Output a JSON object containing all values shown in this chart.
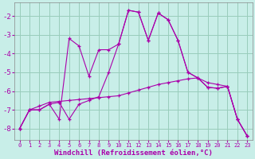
{
  "xlabel": "Windchill (Refroidissement éolien,°C)",
  "background_color": "#c8eee8",
  "grid_color": "#99ccbb",
  "line_color": "#aa00aa",
  "x_values": [
    0,
    1,
    2,
    3,
    4,
    5,
    6,
    7,
    8,
    9,
    10,
    11,
    12,
    13,
    14,
    15,
    16,
    17,
    18,
    19,
    20,
    21,
    22,
    23
  ],
  "line1": [
    -8.0,
    -7.0,
    -7.0,
    -6.7,
    -6.6,
    -7.5,
    -6.7,
    -6.5,
    -6.3,
    -5.0,
    -3.5,
    -1.7,
    -1.8,
    -3.3,
    -1.85,
    -2.2,
    -3.3,
    -5.0,
    -5.3,
    -5.8,
    -5.85,
    -5.75,
    -7.5,
    -8.4
  ],
  "line2": [
    -8.0,
    -7.0,
    -7.0,
    -6.7,
    -7.5,
    -3.2,
    -3.6,
    -5.2,
    -3.8,
    -3.8,
    -3.5,
    -1.7,
    -1.8,
    -3.3,
    -1.85,
    -2.2,
    -3.3,
    -5.0,
    -5.3,
    -5.8,
    -5.85,
    -5.75,
    -7.5,
    -8.4
  ],
  "line3": [
    -8.0,
    -7.0,
    -6.8,
    -6.6,
    -6.55,
    -6.5,
    -6.45,
    -6.4,
    -6.35,
    -6.3,
    -6.25,
    -6.1,
    -5.95,
    -5.8,
    -5.65,
    -5.55,
    -5.45,
    -5.35,
    -5.3,
    -5.55,
    -5.65,
    -5.75,
    -7.5,
    -8.4
  ],
  "ylim": [
    -8.6,
    -1.3
  ],
  "xlim": [
    -0.5,
    23.5
  ],
  "yticks": [
    -8,
    -7,
    -6,
    -5,
    -4,
    -3,
    -2
  ],
  "xtick_labels": [
    "0",
    "1",
    "2",
    "3",
    "4",
    "5",
    "6",
    "7",
    "8",
    "9",
    "10",
    "11",
    "12",
    "13",
    "14",
    "15",
    "16",
    "17",
    "18",
    "19",
    "20",
    "21",
    "22",
    "23"
  ]
}
